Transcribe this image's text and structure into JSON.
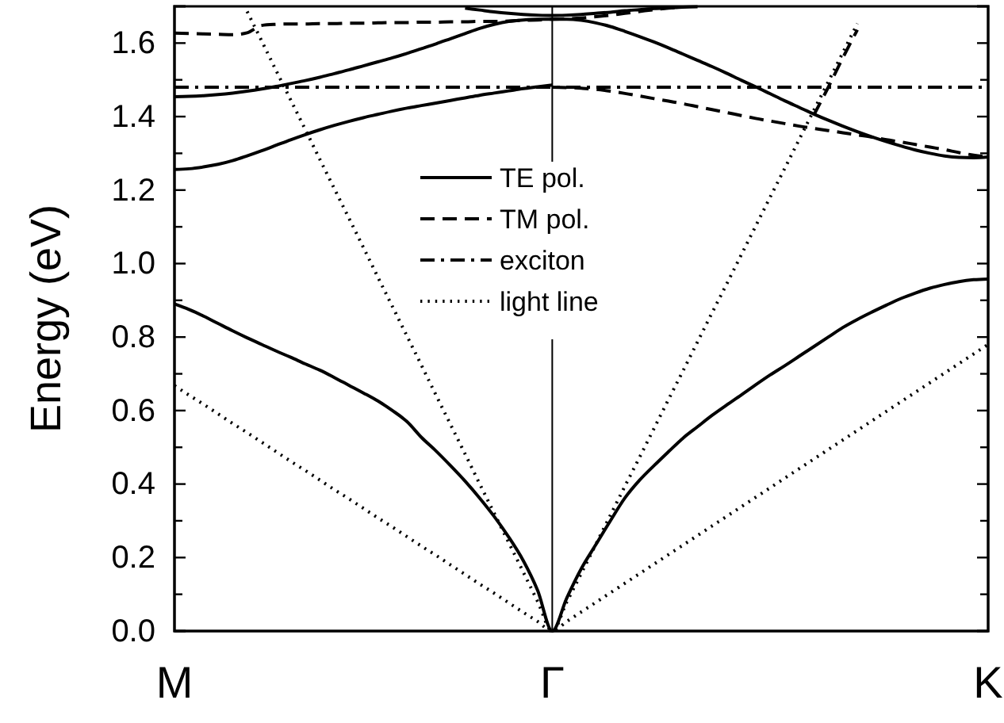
{
  "chart_data": {
    "type": "line",
    "ylabel": "Energy  (eV)",
    "categories": [
      "M",
      null,
      null,
      null,
      null,
      null,
      null,
      null,
      null,
      null,
      null,
      null,
      null,
      null,
      null,
      null,
      null,
      null,
      null,
      null,
      null,
      null,
      null,
      null,
      null,
      null,
      "Γ",
      null,
      null,
      null,
      null,
      null,
      null,
      null,
      null,
      null,
      null,
      null,
      null,
      null,
      null,
      null,
      null,
      null,
      null,
      null,
      null,
      null,
      null,
      null,
      null,
      null,
      null,
      null,
      null,
      null,
      "K"
    ],
    "ylim": [
      0,
      1.7
    ],
    "yticks": [
      {
        "value": 0,
        "label": "0.0"
      },
      {
        "value": 0.1,
        "label": null
      },
      {
        "value": 0.2,
        "label": "0.2"
      },
      {
        "value": 0.3,
        "label": null
      },
      {
        "value": 0.4,
        "label": "0.4"
      },
      {
        "value": 0.5,
        "label": null
      },
      {
        "value": 0.6,
        "label": "0.6"
      },
      {
        "value": 0.7,
        "label": null
      },
      {
        "value": 0.8,
        "label": "0.8"
      },
      {
        "value": 0.9,
        "label": null
      },
      {
        "value": 1.0,
        "label": "1.0"
      },
      {
        "value": 1.1,
        "label": null
      },
      {
        "value": 1.2,
        "label": "1.2"
      },
      {
        "value": 1.3,
        "label": null
      },
      {
        "value": 1.4,
        "label": "1.4"
      },
      {
        "value": 1.5,
        "label": null
      },
      {
        "value": 1.6,
        "label": "1.6"
      }
    ],
    "legend": "top",
    "marker": "none",
    "ref_lines": [
      {
        "axis": "x",
        "value": "Γ",
        "color": "#000000",
        "line_style": "solid"
      }
    ],
    "series": [
      {
        "name": "TE pol.",
        "color": "#000000",
        "line_style": "solid",
        "values": [
          0.89,
          0.875,
          0.857,
          0.837,
          0.817,
          0.798,
          0.78,
          0.762,
          0.745,
          0.727,
          0.71,
          0.69,
          0.669,
          0.648,
          0.626,
          0.6,
          0.57,
          0.527,
          0.49,
          0.45,
          0.408,
          0.362,
          0.312,
          0.256,
          0.192,
          0.11,
          0,
          0.09,
          0.17,
          0.235,
          0.3,
          0.362,
          0.41,
          0.45,
          0.488,
          0.525,
          0.556,
          0.587,
          0.615,
          0.642,
          0.67,
          0.697,
          0.722,
          0.748,
          0.774,
          0.8,
          0.826,
          0.848,
          0.868,
          0.887,
          0.905,
          0.92,
          0.933,
          0.943,
          0.951,
          0.956,
          0.958
        ]
      },
      {
        "color": "#000000",
        "line_style": "solid",
        "values": [
          1.256,
          1.258,
          1.263,
          1.27,
          1.28,
          1.293,
          1.307,
          1.322,
          1.337,
          1.351,
          1.364,
          1.376,
          1.387,
          1.397,
          1.406,
          1.415,
          1.423,
          1.43,
          1.437,
          1.444,
          1.451,
          1.458,
          1.464,
          1.47,
          1.476,
          1.481,
          1.486,
          null,
          null,
          null,
          null,
          null,
          null,
          null,
          null,
          null,
          null,
          null,
          null,
          null,
          null,
          null,
          null,
          null,
          null,
          null,
          null,
          null,
          null,
          null,
          null,
          null,
          null,
          null,
          null,
          null,
          null
        ]
      },
      {
        "color": "#000000",
        "line_style": "solid",
        "values": [
          1.454,
          1.455,
          1.457,
          1.46,
          1.464,
          1.469,
          1.475,
          1.482,
          1.49,
          1.498,
          1.507,
          1.517,
          1.527,
          1.538,
          1.549,
          1.56,
          1.572,
          1.585,
          1.598,
          1.612,
          1.626,
          1.64,
          1.651,
          1.659,
          1.663,
          1.665,
          1.665,
          1.665,
          1.662,
          1.655,
          1.645,
          1.632,
          1.618,
          1.603,
          1.587,
          1.57,
          1.553,
          1.536,
          1.518,
          1.499,
          1.481,
          1.462,
          1.443,
          1.425,
          1.407,
          1.39,
          1.374,
          1.359,
          1.345,
          1.332,
          1.32,
          1.309,
          1.3,
          1.293,
          1.289,
          1.288,
          1.29
        ]
      },
      {
        "color": "#000000",
        "line_style": "solid",
        "values": [
          null,
          null,
          null,
          null,
          null,
          null,
          null,
          null,
          null,
          null,
          null,
          null,
          null,
          null,
          null,
          null,
          null,
          null,
          null,
          null,
          1.695,
          1.69,
          1.685,
          1.681,
          1.678,
          1.676,
          1.675,
          1.676,
          1.678,
          1.681,
          1.684,
          1.688,
          1.691,
          1.694,
          1.696,
          1.698,
          1.699,
          null,
          null,
          null,
          null,
          null,
          null,
          null,
          null,
          null,
          null,
          null,
          null,
          null,
          null,
          null,
          null,
          null,
          null,
          null,
          null
        ]
      },
      {
        "name": "TM pol.",
        "color": "#000000",
        "line_style": "dashed",
        "values": [
          1.627,
          1.626,
          1.625,
          1.624,
          1.623,
          1.628,
          1.648,
          1.651,
          1.652,
          1.652,
          1.653,
          1.653,
          1.654,
          1.654,
          1.655,
          1.656,
          1.656,
          1.657,
          1.657,
          1.658,
          1.658,
          1.659,
          1.659,
          1.66,
          1.662,
          1.663,
          1.665,
          1.666,
          1.668,
          1.672,
          1.676,
          1.681,
          1.686,
          1.691,
          1.695,
          1.698,
          null,
          null,
          null,
          null,
          null,
          null,
          null,
          null,
          null,
          null,
          null,
          null,
          null,
          null,
          null,
          null,
          null,
          null,
          null,
          null,
          null
        ]
      },
      {
        "color": "#000000",
        "line_style": "dashed",
        "values": [
          null,
          null,
          null,
          null,
          null,
          null,
          null,
          null,
          null,
          null,
          null,
          null,
          null,
          null,
          null,
          null,
          null,
          null,
          null,
          null,
          null,
          null,
          null,
          null,
          null,
          null,
          1.48,
          1.479,
          1.477,
          1.474,
          1.469,
          1.463,
          1.456,
          1.449,
          1.442,
          1.435,
          1.427,
          1.419,
          1.411,
          1.403,
          1.395,
          1.388,
          1.381,
          1.374,
          1.368,
          1.362,
          1.356,
          1.35,
          1.344,
          1.337,
          1.331,
          1.324,
          1.317,
          1.31,
          1.302,
          1.295,
          1.29
        ]
      },
      {
        "color": "#000000",
        "line_style": "dashed",
        "values": [
          null,
          null,
          null,
          null,
          null,
          null,
          null,
          null,
          null,
          null,
          null,
          null,
          null,
          null,
          null,
          null,
          null,
          null,
          null,
          null,
          null,
          null,
          null,
          null,
          null,
          null,
          null,
          null,
          null,
          null,
          null,
          null,
          null,
          null,
          null,
          null,
          null,
          null,
          null,
          null,
          null,
          null,
          null,
          null,
          1.404,
          1.48,
          1.56,
          1.636,
          null,
          null,
          null,
          null,
          null,
          null,
          null,
          null,
          null
        ]
      },
      {
        "name": "exciton",
        "color": "#000000",
        "line_style": "dashdot",
        "values": [
          1.48,
          1.48,
          1.48,
          1.48,
          1.48,
          1.48,
          1.48,
          1.48,
          1.48,
          1.48,
          1.48,
          1.48,
          1.48,
          1.48,
          1.48,
          1.48,
          1.48,
          1.48,
          1.48,
          1.48,
          1.48,
          1.48,
          1.48,
          1.48,
          1.48,
          1.48,
          1.48,
          1.48,
          1.48,
          1.48,
          1.48,
          1.48,
          1.48,
          1.48,
          1.48,
          1.48,
          1.48,
          1.48,
          1.48,
          1.48,
          1.48,
          1.48,
          1.48,
          1.48,
          1.48,
          1.48,
          1.48,
          1.48,
          1.48,
          1.48,
          1.48,
          1.48,
          1.48,
          1.48,
          1.48,
          1.48,
          1.48
        ]
      },
      {
        "name": "light line",
        "color": "#000000",
        "line_style": "dotted",
        "values": [
          0.668,
          0.642,
          0.617,
          0.591,
          0.565,
          0.54,
          0.514,
          0.488,
          0.462,
          0.437,
          0.411,
          0.385,
          0.36,
          0.334,
          0.308,
          0.283,
          0.257,
          0.231,
          0.206,
          0.18,
          0.154,
          0.128,
          0.103,
          0.077,
          0.051,
          0.026,
          0,
          0.026,
          0.052,
          0.078,
          0.104,
          0.13,
          0.156,
          0.182,
          0.208,
          0.234,
          0.26,
          0.286,
          0.312,
          0.338,
          0.364,
          0.39,
          0.416,
          0.442,
          0.468,
          0.494,
          0.52,
          0.546,
          0.572,
          0.598,
          0.624,
          0.65,
          0.676,
          0.702,
          0.728,
          0.754,
          0.78
        ]
      },
      {
        "color": "#000000",
        "line_style": "dotted",
        "values": [
          null,
          null,
          null,
          null,
          null,
          1.686,
          1.606,
          1.525,
          1.445,
          1.365,
          1.284,
          1.204,
          1.124,
          1.044,
          0.963,
          0.883,
          0.803,
          0.723,
          0.642,
          0.562,
          0.482,
          0.401,
          0.321,
          0.241,
          0.161,
          0.08,
          0,
          0.079,
          0.157,
          0.236,
          0.315,
          0.394,
          0.472,
          0.551,
          0.63,
          0.708,
          0.787,
          0.866,
          0.944,
          1.023,
          1.102,
          1.181,
          1.259,
          1.338,
          1.417,
          1.495,
          1.574,
          1.653,
          null,
          null,
          null,
          null,
          null,
          null,
          null,
          null,
          null
        ]
      }
    ]
  }
}
